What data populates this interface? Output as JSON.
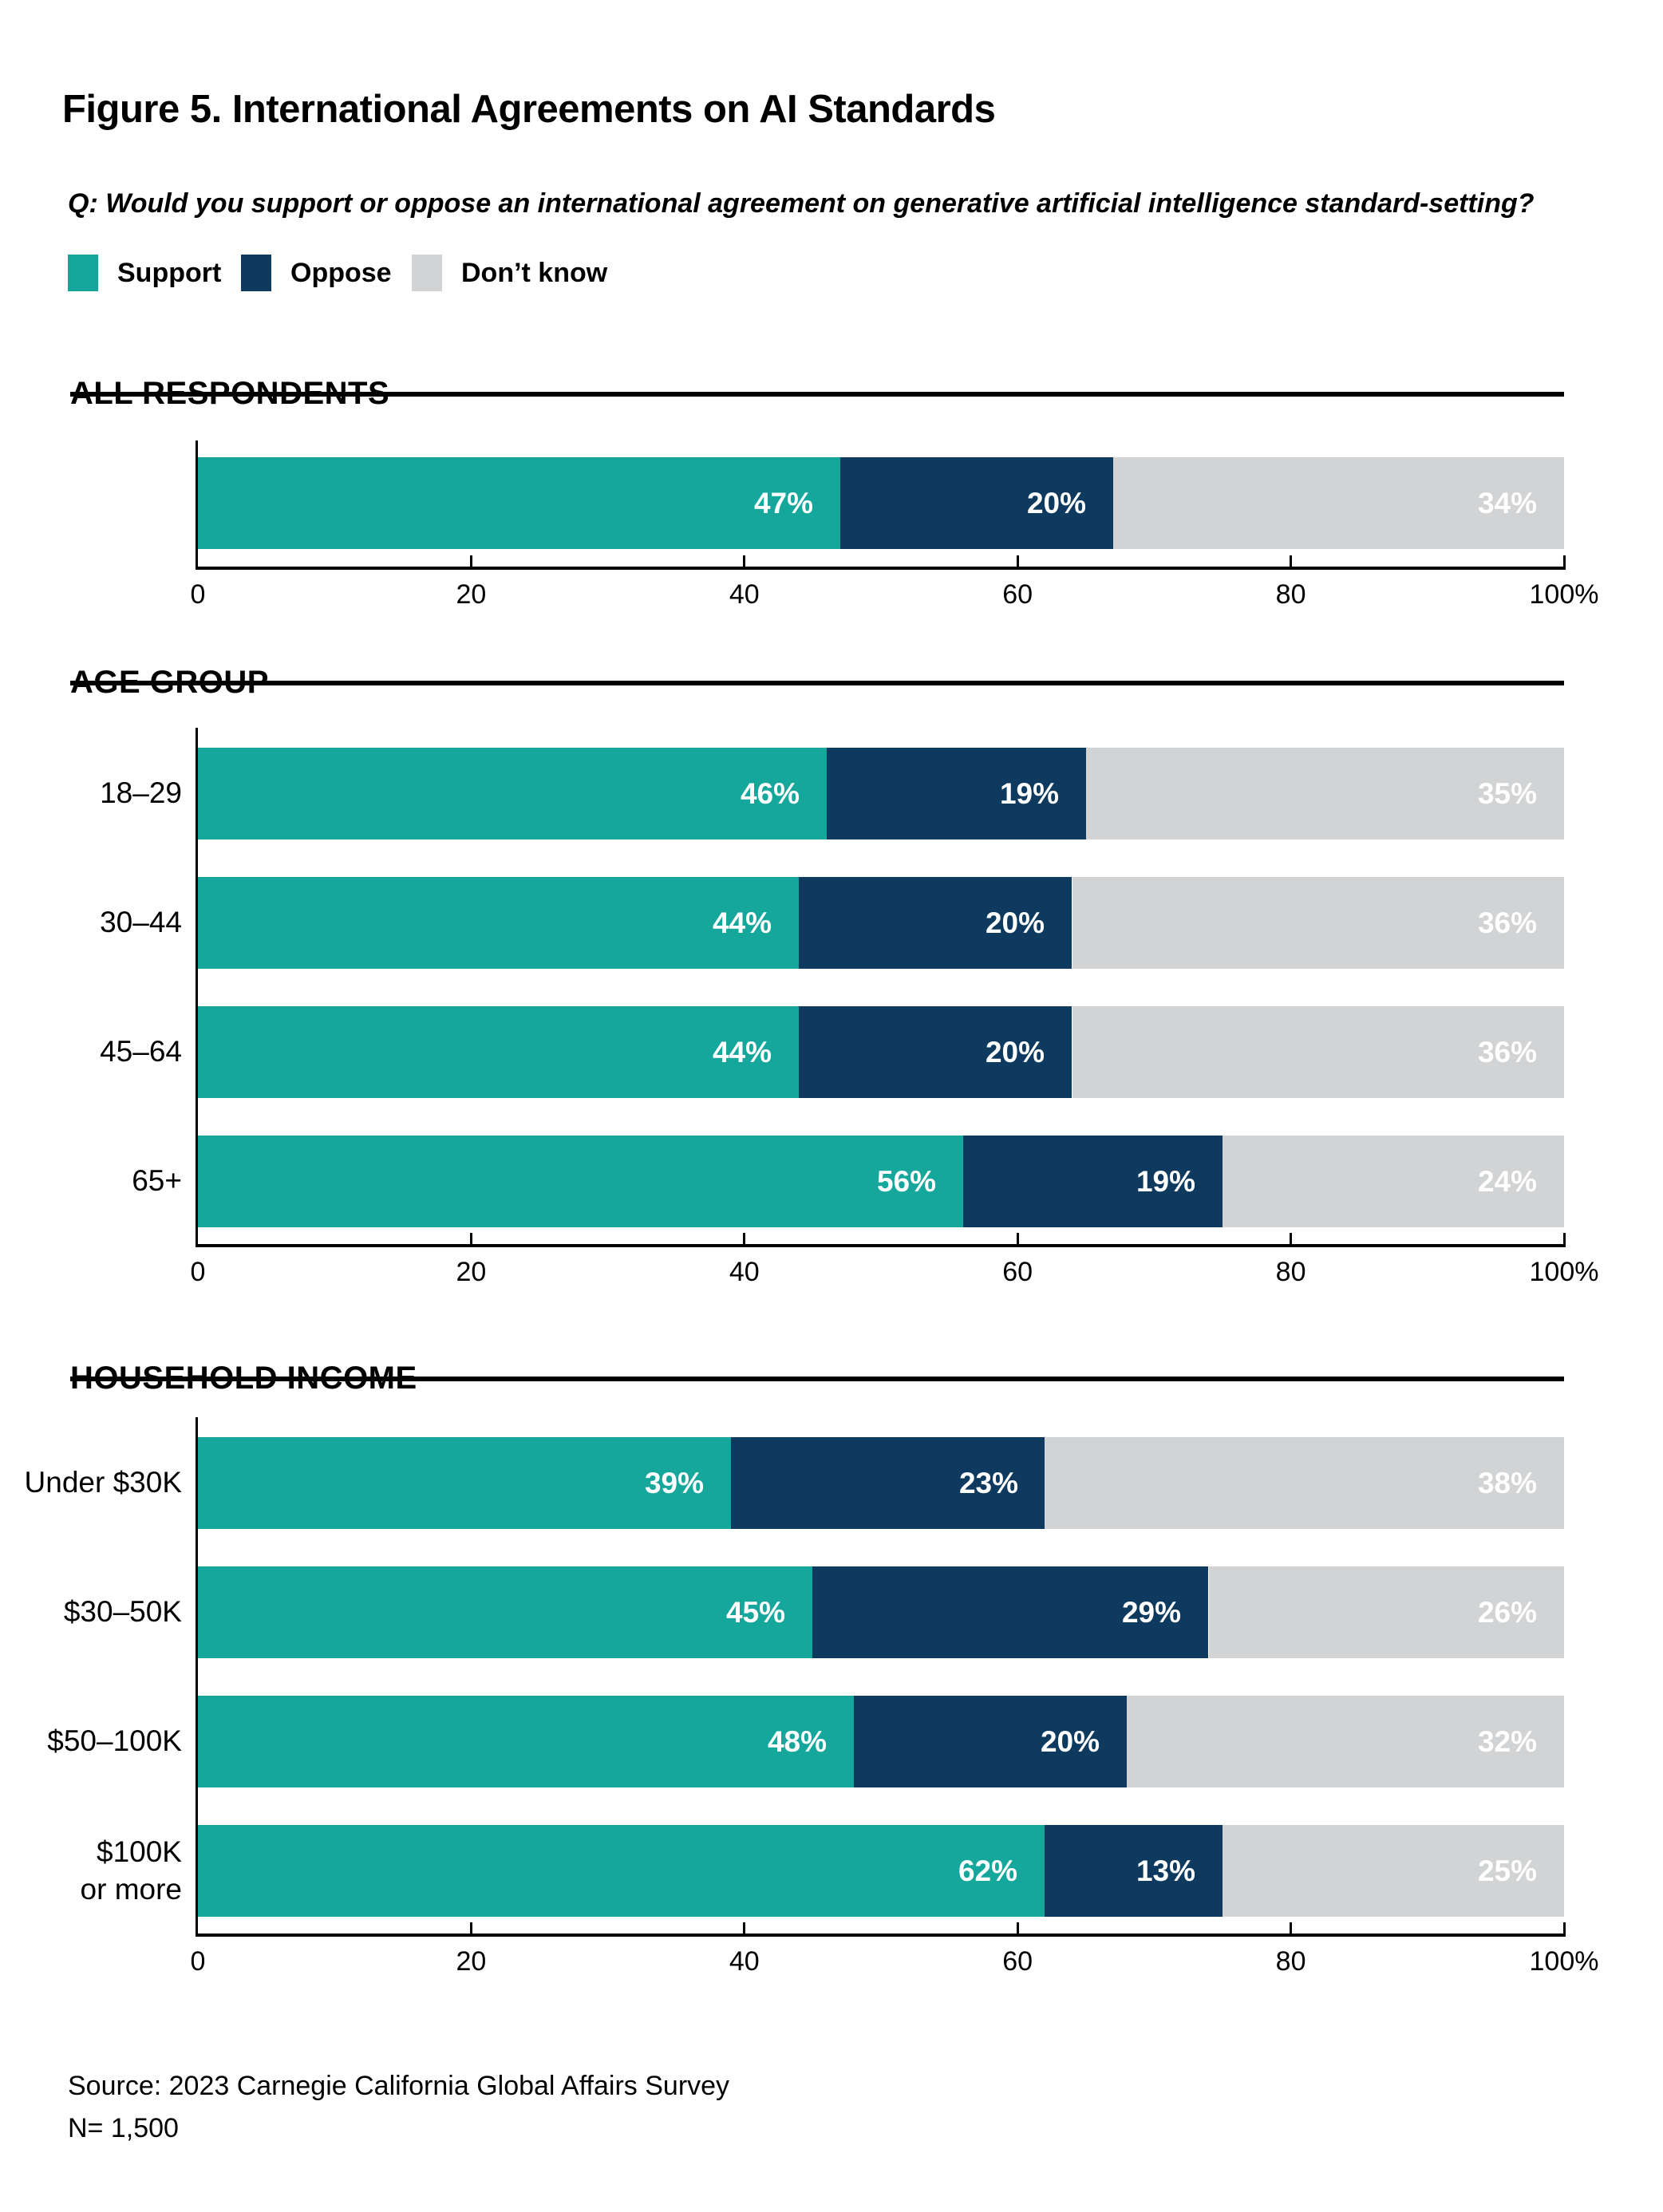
{
  "figure": {
    "title": "Figure 5. International Agreements on AI Standards",
    "question": "Q: Would you support or oppose an international agreement on generative artificial intelligence standard-setting?",
    "source": "Source: 2023 Carnegie California Global Affairs Survey",
    "sample_size": "N= 1,500"
  },
  "legend": {
    "items": [
      {
        "label": "Support",
        "color": "#15A79B"
      },
      {
        "label": "Oppose",
        "color": "#0D3A5E"
      },
      {
        "label": "Don’t know",
        "color": "#D1D3D4"
      }
    ]
  },
  "axis": {
    "tick_labels": [
      "0",
      "20",
      "40",
      "60",
      "80",
      "100%"
    ],
    "min": 0,
    "max": 100
  },
  "chart_data": [
    {
      "type": "bar",
      "stacked": true,
      "orientation": "horizontal",
      "title": "ALL RESPONDENTS",
      "categories": [
        ""
      ],
      "series": [
        {
          "name": "Support",
          "color": "#15A79B",
          "values": [
            47
          ]
        },
        {
          "name": "Oppose",
          "color": "#0D3A5E",
          "values": [
            20
          ]
        },
        {
          "name": "Don’t know",
          "color": "#D1D3D4",
          "values": [
            34
          ]
        }
      ],
      "value_suffix": "%",
      "xlim": [
        0,
        100
      ]
    },
    {
      "type": "bar",
      "stacked": true,
      "orientation": "horizontal",
      "title": "AGE GROUP",
      "categories": [
        "18–29",
        "30–44",
        "45–64",
        "65+"
      ],
      "series": [
        {
          "name": "Support",
          "color": "#15A79B",
          "values": [
            46,
            44,
            44,
            56
          ]
        },
        {
          "name": "Oppose",
          "color": "#0D3A5E",
          "values": [
            19,
            20,
            20,
            19
          ]
        },
        {
          "name": "Don’t know",
          "color": "#D1D3D4",
          "values": [
            35,
            36,
            36,
            24
          ]
        }
      ],
      "value_suffix": "%",
      "xlim": [
        0,
        100
      ]
    },
    {
      "type": "bar",
      "stacked": true,
      "orientation": "horizontal",
      "title": "HOUSEHOLD INCOME",
      "categories": [
        "Under $30K",
        "$30–50K",
        "$50–100K",
        "$100K\nor more"
      ],
      "series": [
        {
          "name": "Support",
          "color": "#15A79B",
          "values": [
            39,
            45,
            48,
            62
          ]
        },
        {
          "name": "Oppose",
          "color": "#0D3A5E",
          "values": [
            23,
            29,
            20,
            13
          ]
        },
        {
          "name": "Don’t know",
          "color": "#D1D3D4",
          "values": [
            38,
            26,
            32,
            25
          ]
        }
      ],
      "value_suffix": "%",
      "xlim": [
        0,
        100
      ]
    }
  ]
}
